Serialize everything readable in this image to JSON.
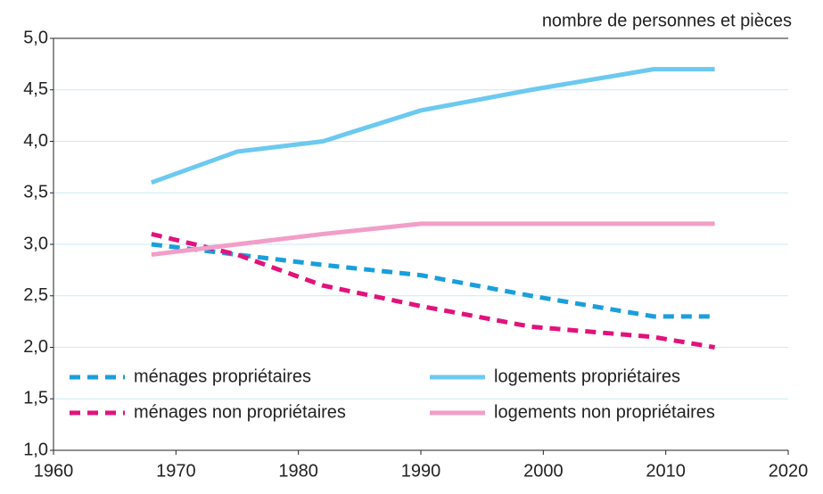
{
  "chart_data": {
    "type": "line",
    "subtitle": "nombre de personnes et pièces",
    "x": [
      1968,
      1975,
      1982,
      1990,
      1999,
      2009,
      2014
    ],
    "series": [
      {
        "name": "ménages propriétaires",
        "color": "#1a9fdb",
        "dash": true,
        "values": [
          3.0,
          2.9,
          2.8,
          2.7,
          2.5,
          2.3,
          2.3
        ]
      },
      {
        "name": "ménages non propriétaires",
        "color": "#e2127c",
        "dash": true,
        "values": [
          3.1,
          2.9,
          2.6,
          2.4,
          2.2,
          2.1,
          2.0
        ]
      },
      {
        "name": "logements propriétaires",
        "color": "#6cc9f0",
        "dash": false,
        "values": [
          3.6,
          3.9,
          4.0,
          4.3,
          4.5,
          4.7,
          4.7
        ]
      },
      {
        "name": "logements non propriétaires",
        "color": "#f29ec8",
        "dash": false,
        "values": [
          2.9,
          3.0,
          3.1,
          3.2,
          3.2,
          3.2,
          3.2
        ]
      }
    ],
    "xlim": [
      1960,
      2020
    ],
    "xticks": [
      1960,
      1970,
      1980,
      1990,
      2000,
      2010,
      2020
    ],
    "ylim": [
      1.0,
      5.0
    ],
    "yticks": [
      {
        "value": 1.0,
        "label": "1,0"
      },
      {
        "value": 1.5,
        "label": "1,5"
      },
      {
        "value": 2.0,
        "label": "2,0"
      },
      {
        "value": 2.5,
        "label": "2,5"
      },
      {
        "value": 3.0,
        "label": "3,0"
      },
      {
        "value": 3.5,
        "label": "3,5"
      },
      {
        "value": 4.0,
        "label": "4,0"
      },
      {
        "value": 4.5,
        "label": "4,5"
      },
      {
        "value": 5.0,
        "label": "5,0"
      }
    ],
    "grid": true
  }
}
